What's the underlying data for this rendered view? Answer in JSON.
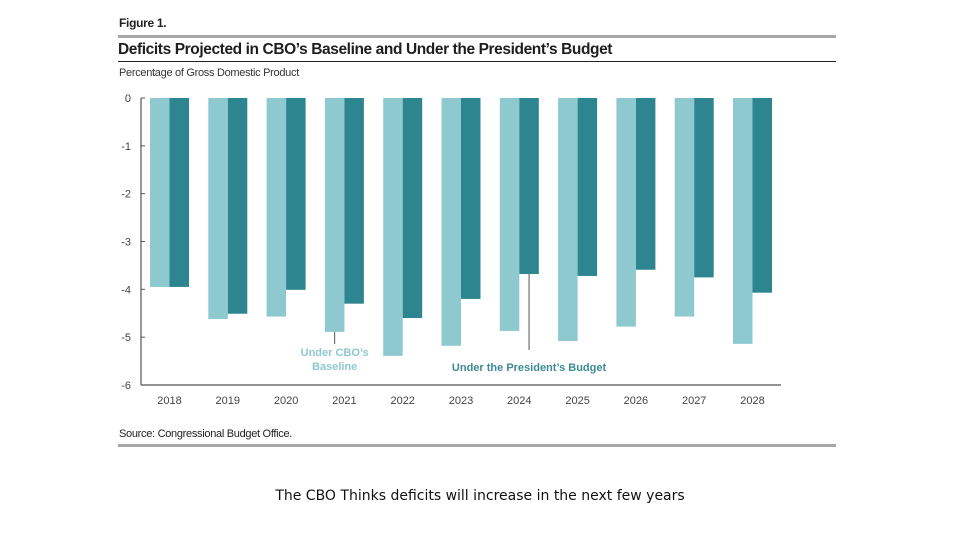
{
  "figure_label": "Figure 1.",
  "caption": "The CBO Thinks deficits will increase in the next few years",
  "chart_data": {
    "type": "bar",
    "title": "Deficits Projected in CBO’s Baseline and Under the President’s Budget",
    "subtitle": "Percentage of Gross Domestic Product",
    "xlabel": "",
    "ylabel": "Percentage of Gross Domestic Product",
    "ylim": [
      -6,
      0
    ],
    "yticks": [
      0,
      -1,
      -2,
      -3,
      -4,
      -5,
      -6
    ],
    "categories": [
      "2018",
      "2019",
      "2020",
      "2021",
      "2022",
      "2023",
      "2024",
      "2025",
      "2026",
      "2027",
      "2028"
    ],
    "series": [
      {
        "name": "Under CBO’s Baseline",
        "color": "#8fc9d0",
        "values": [
          -3.95,
          -4.62,
          -4.57,
          -4.89,
          -5.39,
          -5.18,
          -4.87,
          -5.08,
          -4.78,
          -4.57,
          -5.14
        ]
      },
      {
        "name": "Under the President’s Budget",
        "color": "#2d8590",
        "values": [
          -3.95,
          -4.51,
          -4.01,
          -4.3,
          -4.6,
          -4.2,
          -3.68,
          -3.72,
          -3.59,
          -3.75,
          -4.07
        ]
      }
    ],
    "annotations": [
      {
        "text_lines": [
          "Under CBO’s",
          "Baseline"
        ],
        "series": 0,
        "category": "2021",
        "color": "#8fc9d0"
      },
      {
        "text_lines": [
          "Under the President’s Budget"
        ],
        "series": 1,
        "category": "2024",
        "color": "#3d8b94"
      }
    ],
    "grid": false,
    "legend": "none (direct annotations)",
    "source": "Source: Congressional Budget Office."
  }
}
